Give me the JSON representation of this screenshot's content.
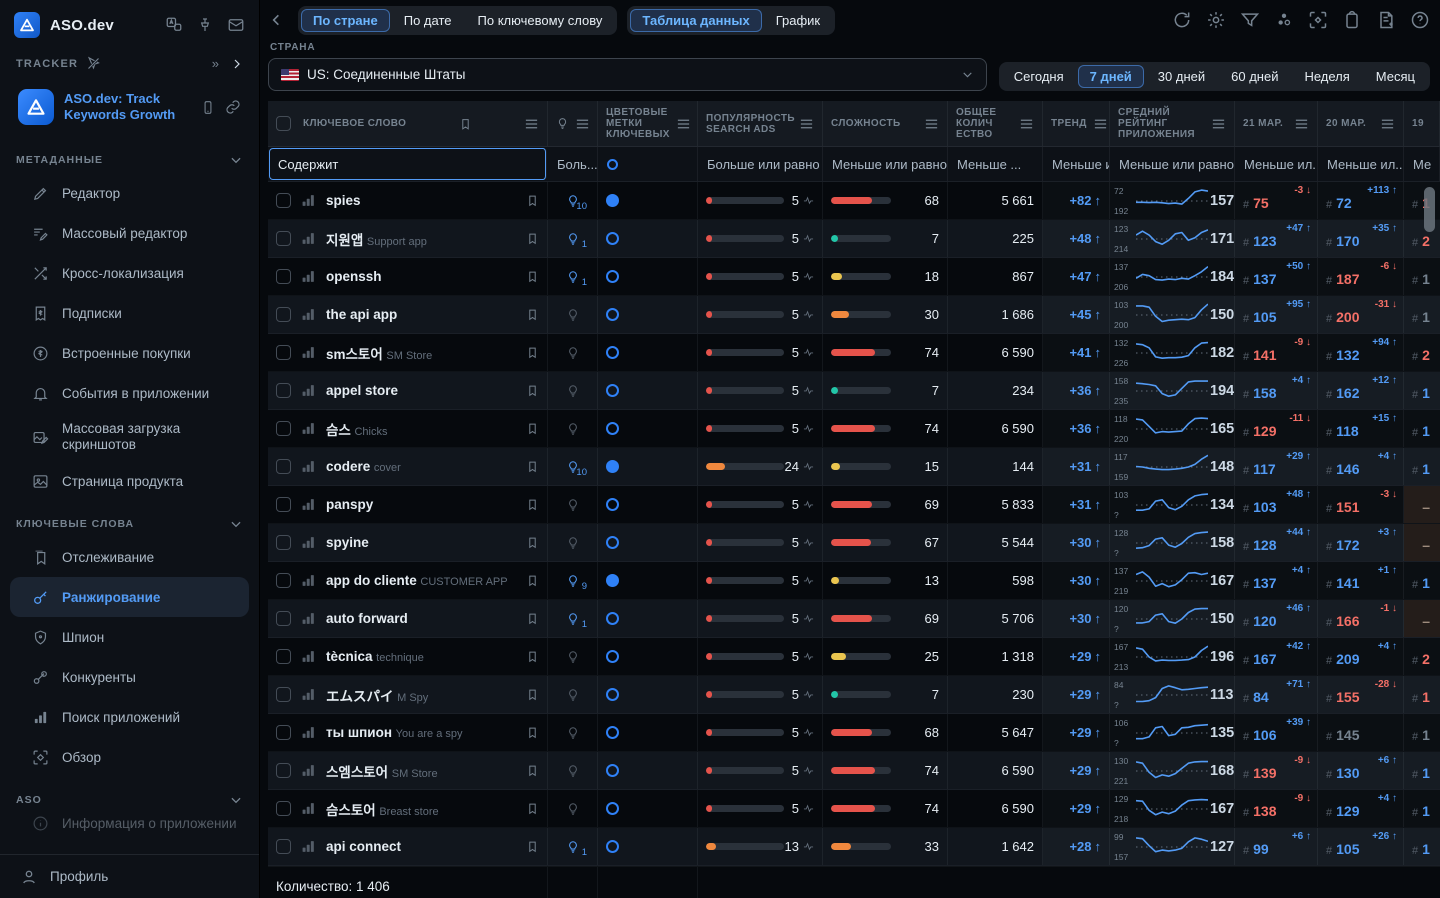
{
  "colors": {
    "red": "#e5534b",
    "orange": "#f0883e",
    "yellow": "#eac54f",
    "teal": "#22c6a8",
    "blue": "#539bf5",
    "salmon": "#f47067",
    "gray": "#768390",
    "accent": "#2f81f7"
  },
  "sidebar": {
    "brand": "ASO.dev",
    "tracker_label": "TRACKER",
    "app": {
      "title": "ASO.dev: Track Keywords Growth"
    },
    "sections": [
      {
        "label": "МЕТАДАННЫЕ",
        "items": [
          {
            "label": "Редактор"
          },
          {
            "label": "Массовый редактор"
          },
          {
            "label": "Кросс-локализация"
          },
          {
            "label": "Подписки"
          },
          {
            "label": "Встроенные покупки"
          },
          {
            "label": "События в приложении"
          },
          {
            "label": "Массовая загрузка скриншотов"
          },
          {
            "label": "Страница продукта"
          }
        ]
      },
      {
        "label": "КЛЮЧЕВЫЕ СЛОВА",
        "items": [
          {
            "label": "Отслеживание"
          },
          {
            "label": "Ранжирование",
            "active": true
          },
          {
            "label": "Шпион"
          },
          {
            "label": "Конкуренты"
          },
          {
            "label": "Поиск приложений"
          },
          {
            "label": "Обзор"
          }
        ]
      },
      {
        "label": "ASO",
        "items": [
          {
            "label": "Информация о приложении"
          }
        ]
      }
    ],
    "profile_label": "Профиль"
  },
  "topbar": {
    "view_tabs": [
      {
        "label": "По стране",
        "active": true
      },
      {
        "label": "По дате",
        "active": false
      },
      {
        "label": "По ключевому слову",
        "active": false
      }
    ],
    "mode_tabs": [
      {
        "label": "Таблица данных",
        "active": true
      },
      {
        "label": "График",
        "active": false
      }
    ]
  },
  "filters": {
    "country_label": "СТРАНА",
    "country_value": "US: Соединенные Штаты",
    "periods": [
      "Сегодня",
      "7 дней",
      "30 дней",
      "60 дней",
      "Неделя",
      "Месяц"
    ],
    "active_period": "7 дней"
  },
  "table": {
    "columns": {
      "keyword": "КЛЮЧЕВОЕ СЛОВО",
      "colors": "ЦВЕТОВЫЕ МЕТКИ КЛЮЧЕВЫХ",
      "popularity": "ПОПУЛЯРНОСТЬ SEARCH ADS",
      "difficulty": "СЛОЖНОСТЬ",
      "total": "ОБЩЕЕ КОЛИЧ ЕСТВО",
      "trend": "ТРЕНД",
      "rating": "СРЕДНИЙ РЕЙТИНГ ПРИЛОЖЕНИЯ",
      "d21": "21 МАР.",
      "d20": "20 МАР.",
      "d19": "19"
    },
    "filter_row": {
      "keyword": "Содержит",
      "bulb": "Боль...",
      "popularity": "Больше или равно",
      "difficulty": "Меньше или равно",
      "total": "Меньше ...",
      "trend": "Меньше ил...",
      "rating": "Меньше или равно",
      "d21": "Меньше ил...",
      "d20": "Меньше ил...",
      "d19": "Ме"
    },
    "footer": "Количество: 1 406",
    "rows": [
      {
        "keyword": "spies",
        "sub": "",
        "bulb": "10",
        "label_filled": true,
        "pop": 5,
        "pop_color": "red",
        "diff": 68,
        "diff_color": "red",
        "total": "5 661",
        "trend": "+82",
        "spark": {
          "top": "72",
          "bottom": "192",
          "avg": "157",
          "points": [
            55,
            55,
            56,
            55,
            57,
            60,
            58,
            62,
            40,
            15,
            8,
            12
          ]
        },
        "d21": {
          "delta": "-3",
          "dir": "down",
          "rank": "75"
        },
        "d20": {
          "delta": "+113",
          "dir": "up",
          "rank": "72"
        },
        "d19": {
          "rank": "1",
          "tone": "down"
        }
      },
      {
        "keyword": "지원앱",
        "sub": "Support app",
        "bulb": "1",
        "label_filled": false,
        "pop": 5,
        "pop_color": "red",
        "diff": 7,
        "diff_color": "teal",
        "total": "225",
        "trend": "+48",
        "spark": {
          "top": "123",
          "bottom": "214",
          "avg": "171",
          "points": [
            35,
            20,
            35,
            60,
            70,
            55,
            30,
            25,
            55,
            45,
            25,
            15
          ]
        },
        "d21": {
          "delta": "+47",
          "dir": "up",
          "rank": "123"
        },
        "d20": {
          "delta": "+35",
          "dir": "up",
          "rank": "170"
        },
        "d19": {
          "rank": "2",
          "tone": "down"
        }
      },
      {
        "keyword": "openssh",
        "sub": "",
        "bulb": "1",
        "label_filled": false,
        "pop": 5,
        "pop_color": "red",
        "diff": 18,
        "diff_color": "yellow",
        "total": "867",
        "trend": "+47",
        "spark": {
          "top": "137",
          "bottom": "206",
          "avg": "184",
          "points": [
            55,
            40,
            45,
            60,
            62,
            58,
            60,
            55,
            58,
            45,
            30,
            10
          ]
        },
        "d21": {
          "delta": "+50",
          "dir": "up",
          "rank": "137"
        },
        "d20": {
          "delta": "-6",
          "dir": "down",
          "rank": "187"
        },
        "d19": {
          "rank": "1",
          "tone": "none"
        }
      },
      {
        "keyword": "the api app",
        "sub": "",
        "bulb": null,
        "label_filled": false,
        "pop": 5,
        "pop_color": "red",
        "diff": 30,
        "diff_color": "orange",
        "total": "1 686",
        "trend": "+45",
        "spark": {
          "top": "103",
          "bottom": "200",
          "avg": "150",
          "points": [
            15,
            15,
            20,
            55,
            75,
            70,
            68,
            66,
            68,
            60,
            30,
            8
          ]
        },
        "d21": {
          "delta": "+95",
          "dir": "up",
          "rank": "105"
        },
        "d20": {
          "delta": "-31",
          "dir": "down",
          "rank": "200"
        },
        "d19": {
          "rank": "1",
          "tone": "none"
        }
      },
      {
        "keyword": "sm스토어",
        "sub": "SM Store",
        "bulb": null,
        "label_filled": false,
        "pop": 5,
        "pop_color": "red",
        "diff": 74,
        "diff_color": "red",
        "total": "6 590",
        "trend": "+41",
        "spark": {
          "top": "132",
          "bottom": "226",
          "avg": "182",
          "points": [
            15,
            18,
            30,
            65,
            70,
            68,
            68,
            66,
            60,
            30,
            12,
            10
          ]
        },
        "d21": {
          "delta": "-9",
          "dir": "down",
          "rank": "141"
        },
        "d20": {
          "delta": "+94",
          "dir": "up",
          "rank": "132"
        },
        "d19": {
          "rank": "2",
          "tone": "down"
        }
      },
      {
        "keyword": "appel store",
        "sub": "",
        "bulb": null,
        "label_filled": false,
        "pop": 5,
        "pop_color": "red",
        "diff": 7,
        "diff_color": "teal",
        "total": "234",
        "trend": "+36",
        "spark": {
          "top": "158",
          "bottom": "235",
          "avg": "194",
          "points": [
            20,
            22,
            25,
            30,
            60,
            70,
            65,
            40,
            15,
            12,
            12,
            12
          ]
        },
        "d21": {
          "delta": "+4",
          "dir": "up",
          "rank": "158"
        },
        "d20": {
          "delta": "+12",
          "dir": "up",
          "rank": "162"
        },
        "d19": {
          "rank": "1",
          "tone": "up"
        }
      },
      {
        "keyword": "슴스",
        "sub": "Chicks",
        "bulb": null,
        "label_filled": false,
        "pop": 5,
        "pop_color": "red",
        "diff": 74,
        "diff_color": "red",
        "total": "6 590",
        "trend": "+36",
        "spark": {
          "top": "118",
          "bottom": "220",
          "avg": "165",
          "points": [
            12,
            15,
            40,
            65,
            60,
            62,
            60,
            58,
            30,
            10,
            8,
            10
          ]
        },
        "d21": {
          "delta": "-11",
          "dir": "down",
          "rank": "129"
        },
        "d20": {
          "delta": "+15",
          "dir": "up",
          "rank": "118"
        },
        "d19": {
          "rank": "1",
          "tone": "up"
        }
      },
      {
        "keyword": "codere",
        "sub": "cover",
        "bulb": "10",
        "label_filled": true,
        "pop": 24,
        "pop_color": "orange",
        "diff": 15,
        "diff_color": "yellow",
        "total": "144",
        "trend": "+31",
        "spark": {
          "top": "117",
          "bottom": "159",
          "avg": "148",
          "points": [
            48,
            50,
            55,
            58,
            60,
            60,
            58,
            55,
            50,
            40,
            20,
            5
          ]
        },
        "d21": {
          "delta": "+29",
          "dir": "up",
          "rank": "117"
        },
        "d20": {
          "delta": "+4",
          "dir": "up",
          "rank": "146"
        },
        "d19": {
          "rank": "1",
          "tone": "up"
        }
      },
      {
        "keyword": "panspy",
        "sub": "",
        "bulb": null,
        "label_filled": false,
        "pop": 5,
        "pop_color": "red",
        "diff": 69,
        "diff_color": "red",
        "total": "5 833",
        "trend": "+31",
        "spark": {
          "top": "103",
          "bottom": "?",
          "avg": "134",
          "points": [
            70,
            70,
            65,
            35,
            30,
            60,
            68,
            55,
            30,
            15,
            10,
            8
          ]
        },
        "d21": {
          "delta": "+48",
          "dir": "up",
          "rank": "103"
        },
        "d20": {
          "delta": "-3",
          "dir": "down",
          "rank": "151"
        },
        "d19": {
          "dash": true
        }
      },
      {
        "keyword": "spyine",
        "sub": "",
        "bulb": null,
        "label_filled": false,
        "pop": 5,
        "pop_color": "red",
        "diff": 67,
        "diff_color": "red",
        "total": "5 544",
        "trend": "+30",
        "spark": {
          "top": "128",
          "bottom": "?",
          "avg": "158",
          "points": [
            70,
            68,
            60,
            35,
            30,
            58,
            66,
            52,
            28,
            14,
            10,
            8
          ]
        },
        "d21": {
          "delta": "+44",
          "dir": "up",
          "rank": "128"
        },
        "d20": {
          "delta": "+3",
          "dir": "up",
          "rank": "172"
        },
        "d19": {
          "dash": true
        }
      },
      {
        "keyword": "app do cliente",
        "sub": "CUSTOMER APP",
        "bulb": "9",
        "label_filled": true,
        "pop": 5,
        "pop_color": "red",
        "diff": 13,
        "diff_color": "yellow",
        "total": "598",
        "trend": "+30",
        "spark": {
          "top": "137",
          "bottom": "219",
          "avg": "167",
          "points": [
            25,
            15,
            35,
            70,
            60,
            72,
            65,
            45,
            20,
            18,
            25,
            20
          ]
        },
        "d21": {
          "delta": "+4",
          "dir": "up",
          "rank": "137"
        },
        "d20": {
          "delta": "+1",
          "dir": "up",
          "rank": "141"
        },
        "d19": {
          "rank": "1",
          "tone": "up"
        }
      },
      {
        "keyword": "auto forward",
        "sub": "",
        "bulb": "1",
        "label_filled": false,
        "pop": 5,
        "pop_color": "red",
        "diff": 69,
        "diff_color": "red",
        "total": "5 706",
        "trend": "+30",
        "spark": {
          "top": "120",
          "bottom": "?",
          "avg": "150",
          "points": [
            65,
            65,
            60,
            35,
            30,
            60,
            66,
            50,
            25,
            12,
            10,
            10
          ]
        },
        "d21": {
          "delta": "+46",
          "dir": "up",
          "rank": "120"
        },
        "d20": {
          "delta": "-1",
          "dir": "down",
          "rank": "166"
        },
        "d19": {
          "dash": true
        }
      },
      {
        "keyword": "tècnica",
        "sub": "technique",
        "bulb": null,
        "label_filled": false,
        "pop": 5,
        "pop_color": "red",
        "diff": 25,
        "diff_color": "yellow",
        "total": "1 318",
        "trend": "+29",
        "spark": {
          "top": "167",
          "bottom": "213",
          "avg": "196",
          "points": [
            15,
            20,
            50,
            65,
            62,
            63,
            63,
            62,
            60,
            50,
            25,
            8
          ]
        },
        "d21": {
          "delta": "+42",
          "dir": "up",
          "rank": "167"
        },
        "d20": {
          "delta": "+4",
          "dir": "up",
          "rank": "209"
        },
        "d19": {
          "rank": "2",
          "tone": "down"
        }
      },
      {
        "keyword": "エムスパイ",
        "sub": "M Spy",
        "bulb": null,
        "label_filled": false,
        "pop": 5,
        "pop_color": "red",
        "diff": 7,
        "diff_color": "teal",
        "total": "230",
        "trend": "+29",
        "spark": {
          "top": "84",
          "bottom": "?",
          "avg": "113",
          "points": [
            75,
            75,
            72,
            60,
            25,
            15,
            22,
            30,
            28,
            25,
            22,
            20
          ]
        },
        "d21": {
          "delta": "+71",
          "dir": "up",
          "rank": "84"
        },
        "d20": {
          "delta": "-28",
          "dir": "down",
          "rank": "155"
        },
        "d19": {
          "rank": "1",
          "tone": "down"
        }
      },
      {
        "keyword": "ты шпион",
        "sub": "You are a spy",
        "bulb": null,
        "label_filled": false,
        "pop": 5,
        "pop_color": "red",
        "diff": 68,
        "diff_color": "red",
        "total": "5 647",
        "trend": "+29",
        "spark": {
          "top": "106",
          "bottom": "?",
          "avg": "135",
          "points": [
            72,
            72,
            65,
            30,
            25,
            60,
            55,
            30,
            28,
            22,
            20,
            18
          ]
        },
        "d21": {
          "delta": "+39",
          "dir": "up",
          "rank": "106"
        },
        "d20": {
          "delta": "",
          "dir": "none",
          "rank": "145"
        },
        "d19": {
          "rank": "1",
          "tone": "none"
        }
      },
      {
        "keyword": "스엠스토어",
        "sub": "SM Store",
        "bulb": null,
        "label_filled": false,
        "pop": 5,
        "pop_color": "red",
        "diff": 74,
        "diff_color": "red",
        "total": "6 590",
        "trend": "+29",
        "spark": {
          "top": "130",
          "bottom": "221",
          "avg": "168",
          "points": [
            15,
            20,
            55,
            75,
            65,
            70,
            60,
            40,
            20,
            15,
            14,
            14
          ]
        },
        "d21": {
          "delta": "-9",
          "dir": "down",
          "rank": "139"
        },
        "d20": {
          "delta": "+6",
          "dir": "up",
          "rank": "130"
        },
        "d19": {
          "rank": "1",
          "tone": "up"
        }
      },
      {
        "keyword": "슴스토어",
        "sub": "Breast store",
        "bulb": null,
        "label_filled": false,
        "pop": 5,
        "pop_color": "red",
        "diff": 74,
        "diff_color": "red",
        "total": "6 590",
        "trend": "+29",
        "spark": {
          "top": "129",
          "bottom": "218",
          "avg": "167",
          "points": [
            18,
            20,
            55,
            72,
            62,
            68,
            58,
            35,
            18,
            15,
            14,
            15
          ]
        },
        "d21": {
          "delta": "-9",
          "dir": "down",
          "rank": "138"
        },
        "d20": {
          "delta": "+4",
          "dir": "up",
          "rank": "129"
        },
        "d19": {
          "rank": "1",
          "tone": "up"
        }
      },
      {
        "keyword": "api connect",
        "sub": "",
        "bulb": "1",
        "label_filled": false,
        "pop": 13,
        "pop_color": "orange",
        "diff": 33,
        "diff_color": "orange",
        "total": "1 642",
        "trend": "+28",
        "spark": {
          "top": "99",
          "bottom": "157",
          "avg": "127",
          "points": [
            15,
            18,
            45,
            68,
            62,
            65,
            62,
            55,
            30,
            15,
            20,
            28
          ]
        },
        "d21": {
          "delta": "+6",
          "dir": "up",
          "rank": "99"
        },
        "d20": {
          "delta": "+26",
          "dir": "up",
          "rank": "105"
        },
        "d19": {
          "rank": "1",
          "tone": "up"
        }
      }
    ]
  }
}
